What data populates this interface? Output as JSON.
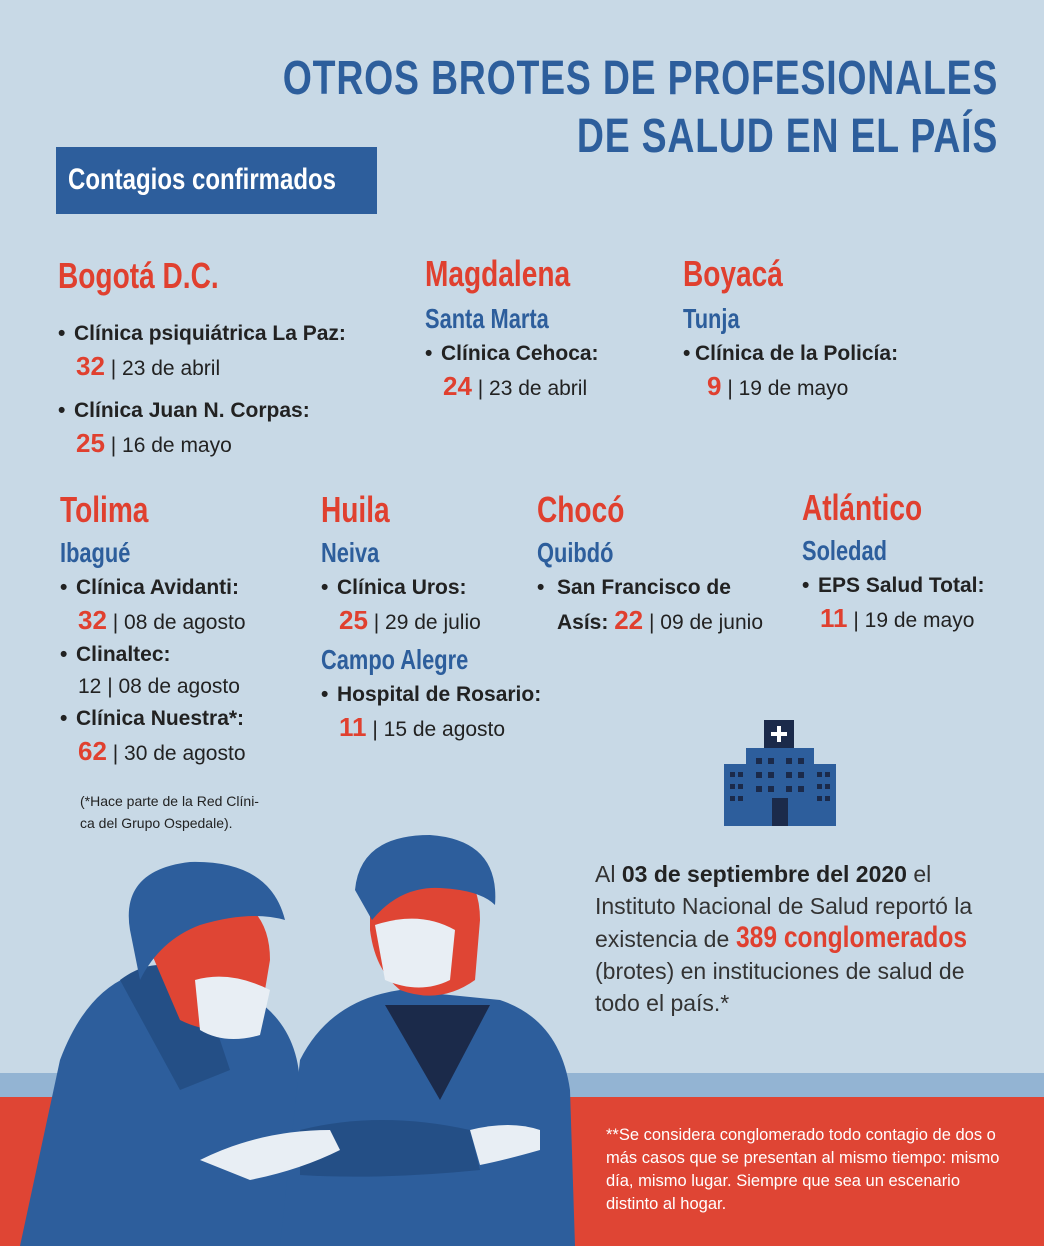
{
  "title": {
    "line1": "OTROS BROTES DE PROFESIONALES",
    "line2": "DE SALUD EN EL PAÍS"
  },
  "badge": "Contagios confirmados",
  "regions": {
    "bogota": {
      "dept": "Bogotá D.C.",
      "items": [
        {
          "name": "Clínica psiquiátrica La Paz:",
          "count": "32",
          "date": "| 23 de abril"
        },
        {
          "name": "Clínica Juan N. Corpas:",
          "count": "25",
          "date": "| 16 de mayo"
        }
      ]
    },
    "magdalena": {
      "dept": "Magdalena",
      "city": "Santa Marta",
      "items": [
        {
          "name": "Clínica Cehoca:",
          "count": "24",
          "date": "| 23 de abril"
        }
      ]
    },
    "boyaca": {
      "dept": "Boyacá",
      "city": "Tunja",
      "items": [
        {
          "name": "Clínica de la Policía:",
          "count": "9",
          "date": "| 19 de mayo"
        }
      ]
    },
    "tolima": {
      "dept": "Tolima",
      "city": "Ibagué",
      "items": [
        {
          "name": "Clínica Avidanti:",
          "count": "32",
          "date": "| 08 de agosto"
        },
        {
          "name": "Clinaltec:",
          "count": "12",
          "date": "| 08 de agosto"
        },
        {
          "name": "Clínica Nuestra*:",
          "count": "62",
          "date": "| 30 de agosto"
        }
      ],
      "note_line1": "(*Hace parte de la Red Clíni-",
      "note_line2": "ca del Grupo Ospedale)."
    },
    "huila": {
      "dept": "Huila",
      "city": "Neiva",
      "items": [
        {
          "name": "Clínica Uros:",
          "count": "25",
          "date": "| 29 de julio"
        }
      ],
      "city2": "Campo Alegre",
      "items2": [
        {
          "name": "Hospital de Rosario:",
          "count": "11",
          "date": "| 15 de agosto"
        }
      ]
    },
    "choco": {
      "dept": "Chocó",
      "city": "Quibdó",
      "items": [
        {
          "name_line1": "San Francisco de",
          "name_line2": "Asís:",
          "count": "22",
          "date": "| 09 de junio"
        }
      ]
    },
    "atlantico": {
      "dept": "Atlántico",
      "city": "Soledad",
      "items": [
        {
          "name": "EPS Salud Total:",
          "count": "11",
          "date": "| 19 de mayo"
        }
      ]
    }
  },
  "summary": {
    "p1": "Al",
    "date_bold": "03 de septiembre del 2020",
    "p2": "el Instituto Nacional de Salud reportó la existencia de",
    "highlight": "389 conglomerados",
    "p3": "(brotes) en instituciones de salud de todo el país.*"
  },
  "footnote": "**Se considera conglomerado todo contagio de dos o más casos que se presentan al mismo tiempo: mismo día, mismo lugar. Siempre que sea un escenario distinto al hogar.",
  "colors": {
    "background": "#c8d9e6",
    "blue": "#2d5e9c",
    "red": "#e0402f",
    "navy": "#1b2a4a"
  },
  "icons": {
    "hospital": "hospital-icon",
    "illustration": "health-workers-illustration"
  }
}
